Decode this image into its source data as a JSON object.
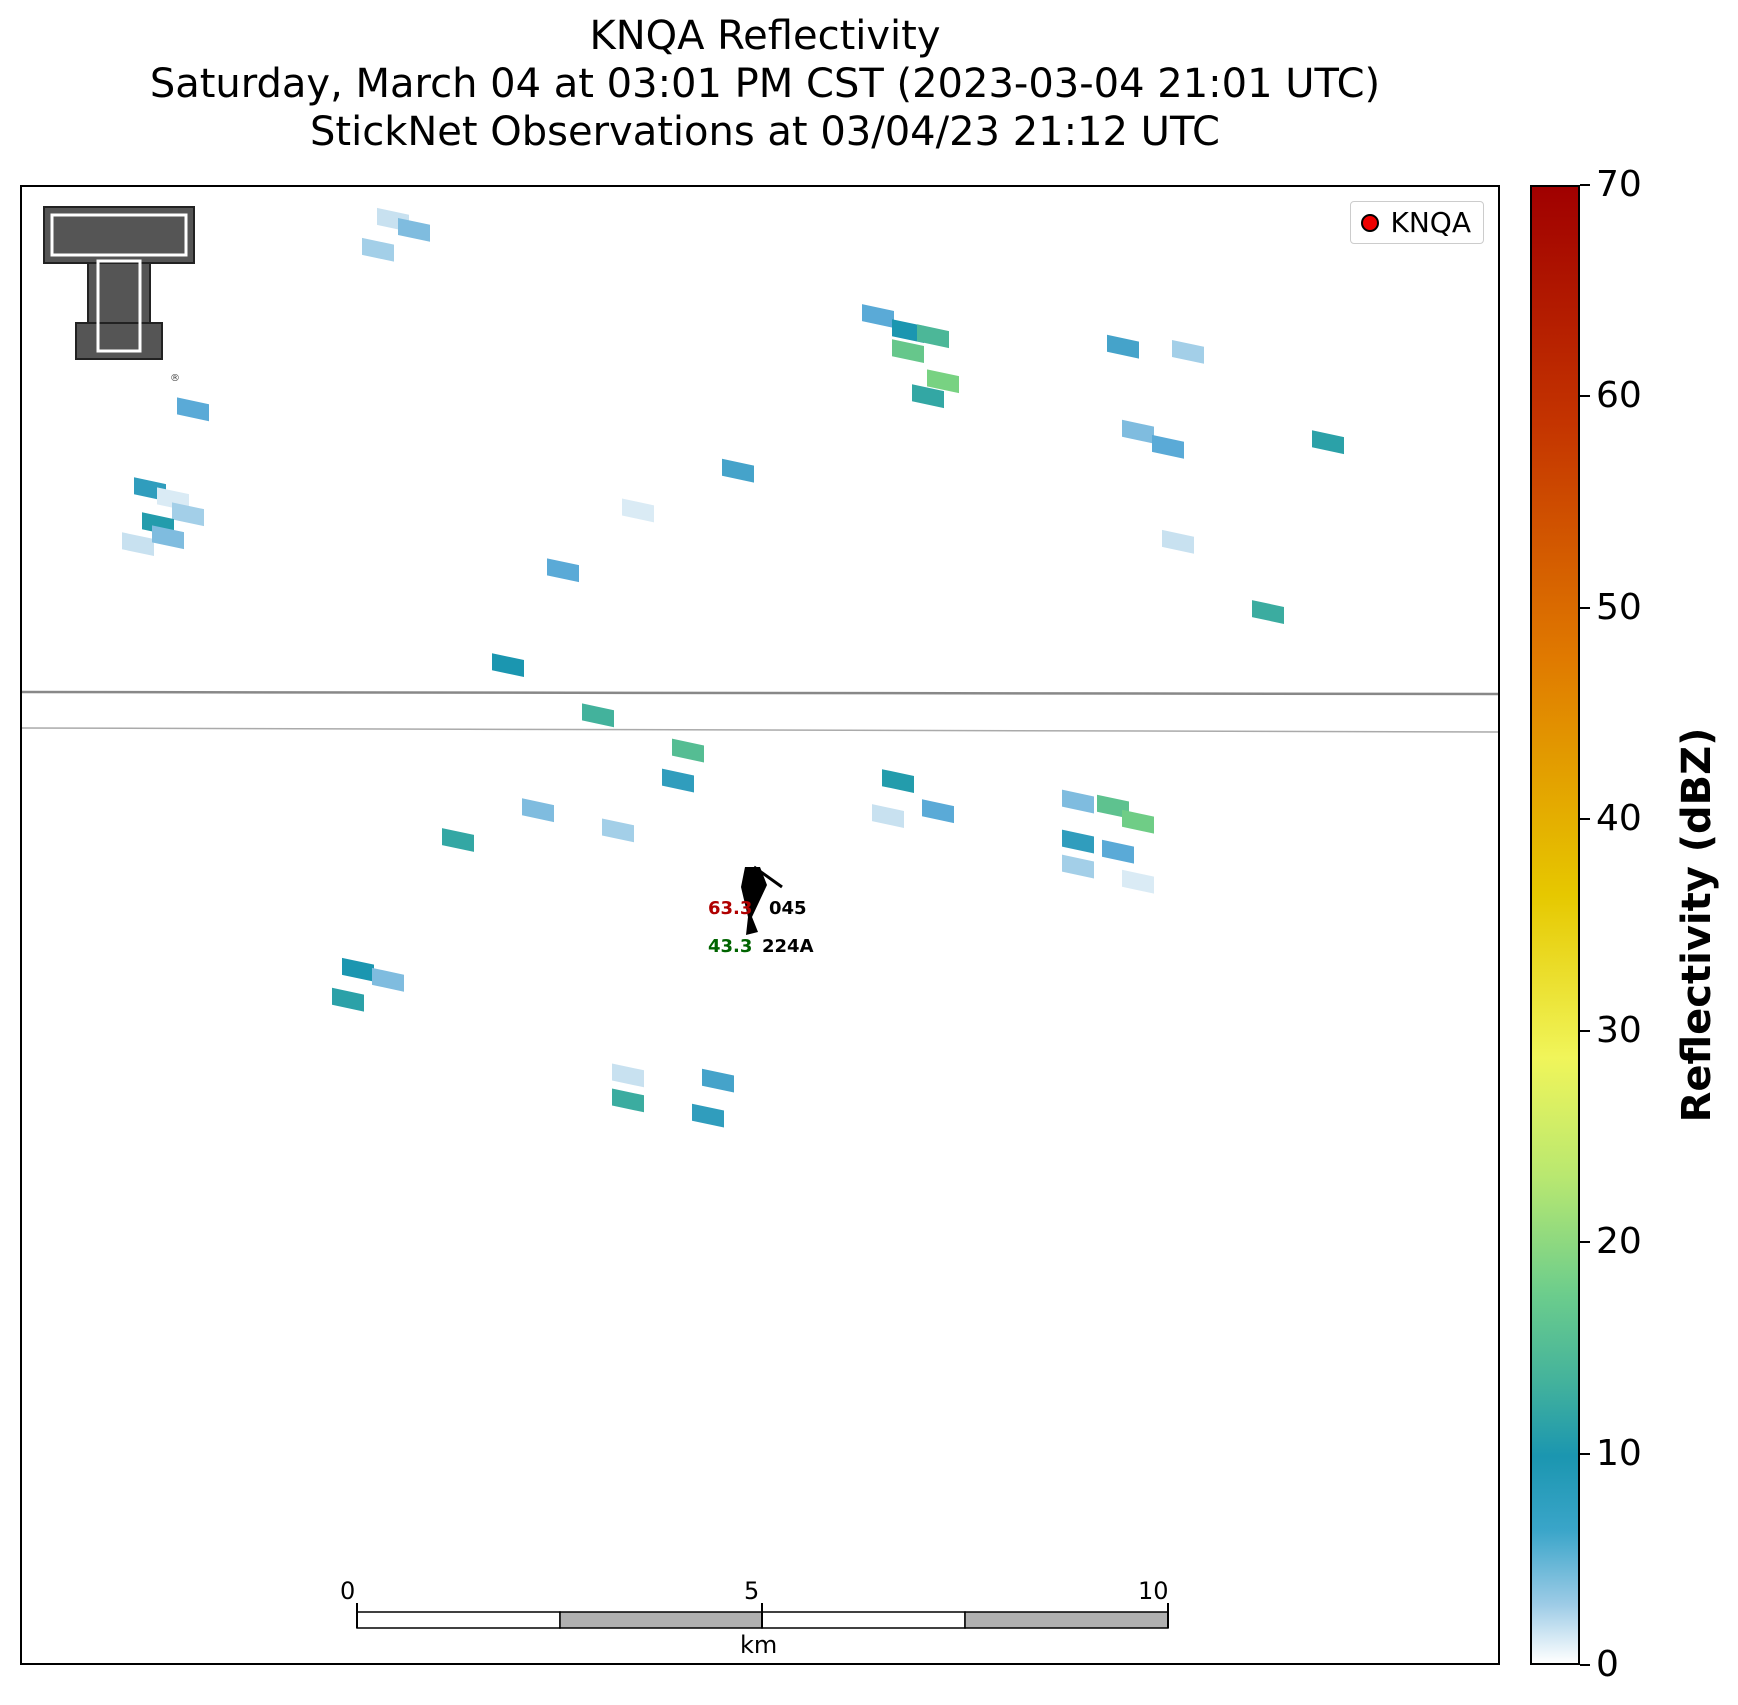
{
  "title": {
    "line1": "KNQA Reflectivity",
    "line2": "Saturday, March 04 at 03:01 PM CST (2023-03-04 21:01 UTC)",
    "line3": "StickNet Observations at 03/04/23 21:12 UTC"
  },
  "legend": {
    "label": "KNQA",
    "marker_color": "#ee0000"
  },
  "observation": {
    "temperature": "63.3",
    "temperature_color": "#b00000",
    "dewpoint": "43.3",
    "dewpoint_color": "#006400",
    "pressure_code": "045",
    "station_id": "224A"
  },
  "scale_bar": {
    "tick0": "0",
    "tick5": "5",
    "tick10": "10",
    "unit": "km"
  },
  "colorbar": {
    "label": "Reflectivity (dBZ)",
    "min": 0,
    "max": 70,
    "ticks": [
      "0",
      "10",
      "20",
      "30",
      "40",
      "50",
      "60",
      "70"
    ]
  },
  "reflectivity_dbz": [
    3,
    5,
    4,
    6,
    8,
    2,
    4,
    10,
    3,
    5,
    6,
    9,
    15,
    18,
    20,
    12,
    7,
    4,
    5,
    6,
    11,
    13,
    3,
    2,
    7,
    6,
    9,
    14,
    16,
    8,
    5,
    4,
    12,
    10,
    6,
    3,
    5,
    17,
    19,
    8,
    6,
    4,
    2,
    9,
    11,
    5,
    3,
    7,
    13,
    8
  ]
}
